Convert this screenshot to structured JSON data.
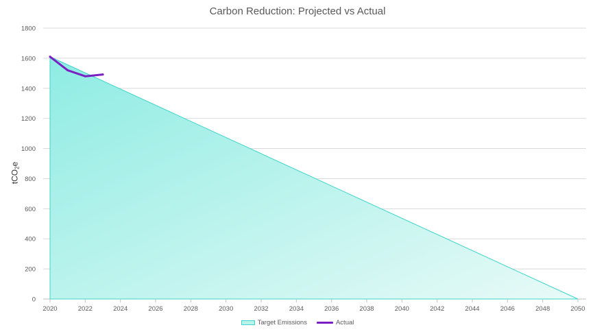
{
  "chart_data": {
    "type": "area",
    "title": "Carbon Reduction: Projected vs Actual",
    "ylabel": {
      "main": "tCO",
      "sub": "2",
      "tail": "e"
    },
    "xlabel": "",
    "xlim": [
      2020,
      2050
    ],
    "ylim": [
      0,
      1800
    ],
    "x_ticks": [
      2020,
      2022,
      2024,
      2026,
      2028,
      2030,
      2032,
      2034,
      2036,
      2038,
      2040,
      2042,
      2044,
      2046,
      2048,
      2050
    ],
    "y_ticks": [
      0,
      200,
      400,
      600,
      800,
      1000,
      1200,
      1400,
      1600,
      1800
    ],
    "grid": true,
    "legend_position": "bottom",
    "series": [
      {
        "name": "Target Emissions",
        "type": "area",
        "color": "#3fd4c9",
        "x": [
          2020,
          2050
        ],
        "values": [
          1610,
          0
        ]
      },
      {
        "name": "Actual",
        "type": "line",
        "color": "#7a1fc2",
        "x": [
          2020,
          2021,
          2022,
          2023
        ],
        "values": [
          1610,
          1520,
          1480,
          1492
        ]
      }
    ]
  }
}
